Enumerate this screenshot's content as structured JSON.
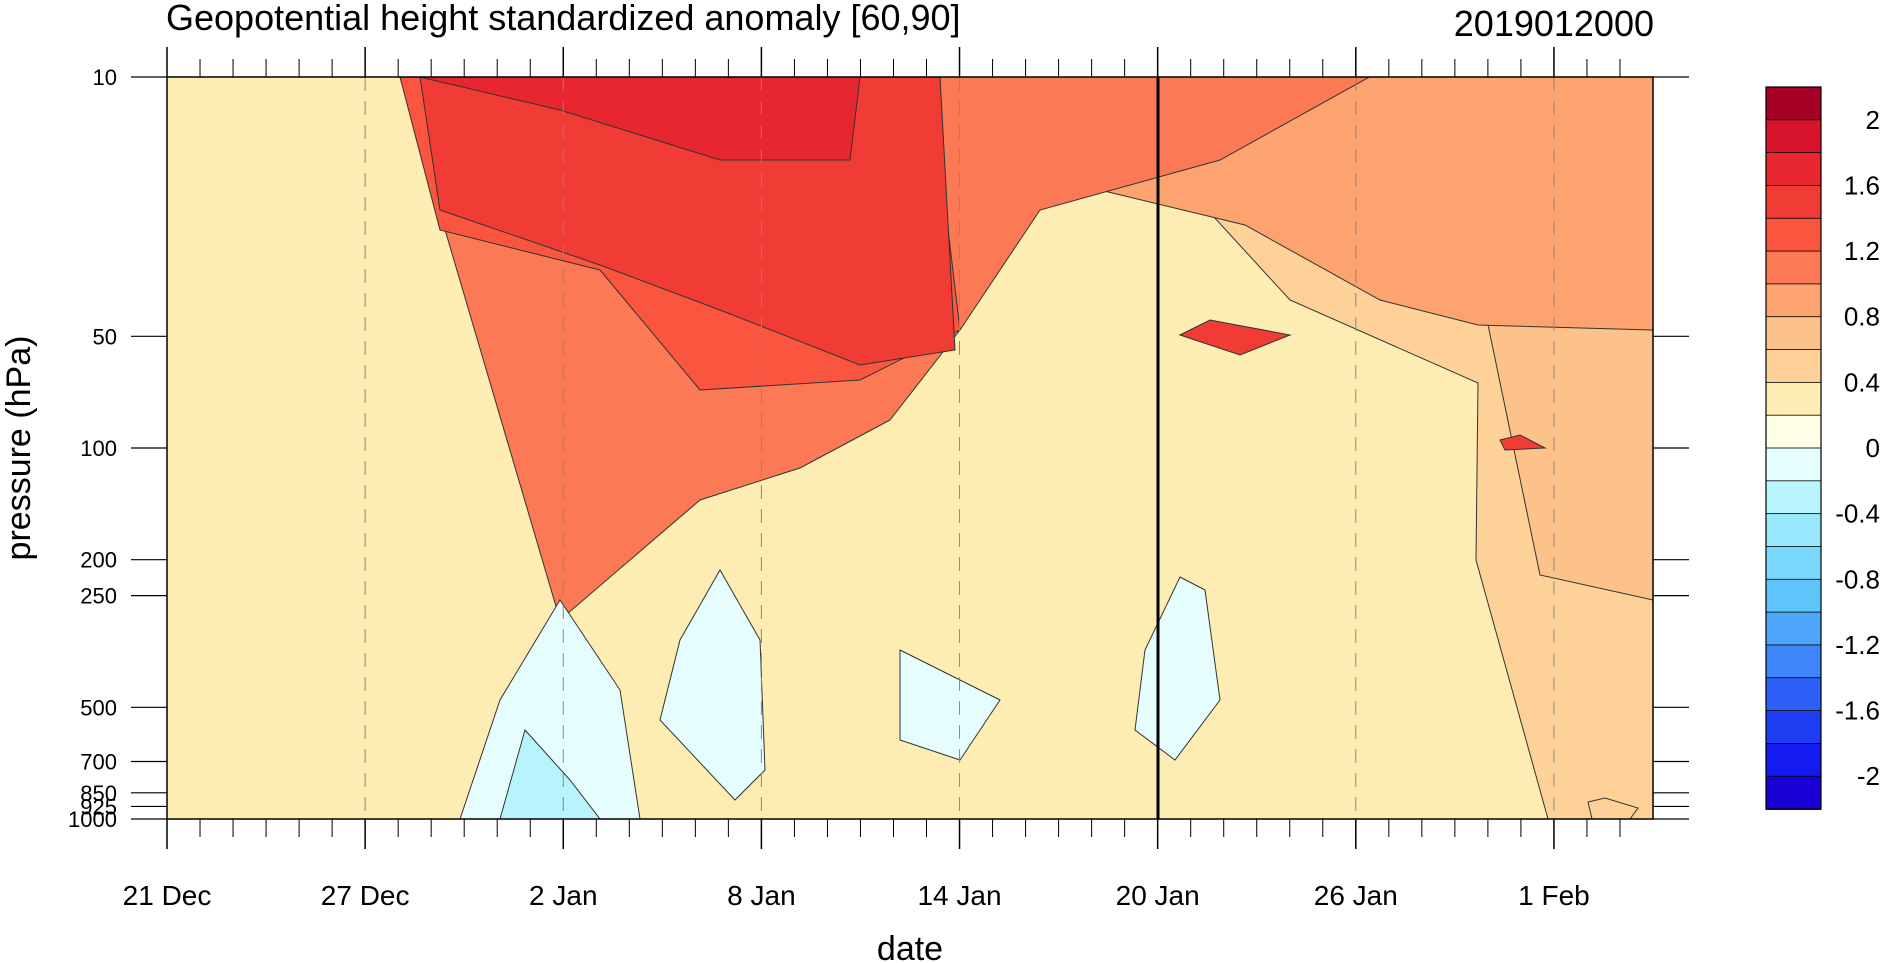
{
  "chart_data": {
    "type": "heatmap",
    "subtype": "time-pressure filled contour",
    "title": "Geopotential height standardized anomaly [60,90]",
    "date_label": "2019012000",
    "xlabel": "date",
    "ylabel": "pressure (hPa)",
    "x_ticks": [
      "21 Dec",
      "27 Dec",
      "2 Jan",
      "8 Jan",
      "14 Jan",
      "20 Jan",
      "26 Jan",
      "1 Feb"
    ],
    "x_range": [
      "2018-12-21",
      "2019-02-05"
    ],
    "y_ticks": [
      10,
      50,
      100,
      200,
      250,
      500,
      700,
      850,
      925,
      1000
    ],
    "y_scale": "log, inverted",
    "y_range": [
      10,
      1000
    ],
    "marker_line_date": "20 Jan",
    "grid": "dashed vertical lines at date ticks",
    "colorbar": {
      "labels": [
        "2",
        "1.6",
        "1.2",
        "0.8",
        "0.4",
        "0",
        "-0.4",
        "-0.8",
        "-1.2",
        "-1.6",
        "-2"
      ],
      "levels": [
        2.2,
        2.0,
        1.8,
        1.6,
        1.4,
        1.2,
        1.0,
        0.8,
        0.6,
        0.4,
        0.2,
        0.0,
        -0.2,
        -0.4,
        -0.6,
        -0.8,
        -1.0,
        -1.2,
        -1.4,
        -1.6,
        -1.8,
        -2.0,
        -2.2
      ],
      "colors": [
        "#a50026",
        "#d7142c",
        "#e8262f",
        "#f03c35",
        "#f9553f",
        "#fb7a55",
        "#fda36f",
        "#fdc28a",
        "#fdd197",
        "#feedb2",
        "#fffee6",
        "#e6fdfe",
        "#b8f4fe",
        "#98e8fd",
        "#7bd8fd",
        "#5fc3fc",
        "#4ea6fb",
        "#3e84fa",
        "#2c60f8",
        "#1f3df2",
        "#141bf0",
        "#1b00d6"
      ]
    }
  }
}
